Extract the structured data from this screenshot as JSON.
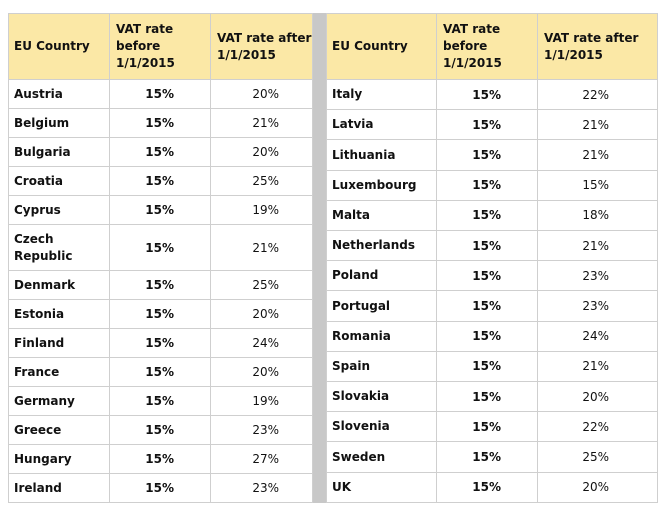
{
  "headers": {
    "country": "EU Country",
    "before": "VAT rate before 1/1/2015",
    "after": "VAT rate after 1/1/2015"
  },
  "left_rows": [
    {
      "country": "Austria",
      "before": "15%",
      "after": "20%"
    },
    {
      "country": "Belgium",
      "before": "15%",
      "after": "21%"
    },
    {
      "country": "Bulgaria",
      "before": "15%",
      "after": "20%"
    },
    {
      "country": "Croatia",
      "before": "15%",
      "after": "25%"
    },
    {
      "country": "Cyprus",
      "before": "15%",
      "after": "19%"
    },
    {
      "country": "Czech Republic",
      "before": "15%",
      "after": "21%"
    },
    {
      "country": "Denmark",
      "before": "15%",
      "after": "25%"
    },
    {
      "country": "Estonia",
      "before": "15%",
      "after": "20%"
    },
    {
      "country": "Finland",
      "before": "15%",
      "after": "24%"
    },
    {
      "country": "France",
      "before": "15%",
      "after": "20%"
    },
    {
      "country": "Germany",
      "before": "15%",
      "after": "19%"
    },
    {
      "country": "Greece",
      "before": "15%",
      "after": "23%"
    },
    {
      "country": "Hungary",
      "before": "15%",
      "after": "27%"
    },
    {
      "country": "Ireland",
      "before": "15%",
      "after": "23%"
    }
  ],
  "right_rows": [
    {
      "country": "Italy",
      "before": "15%",
      "after": "22%"
    },
    {
      "country": "Latvia",
      "before": "15%",
      "after": "21%"
    },
    {
      "country": "Lithuania",
      "before": "15%",
      "after": "21%"
    },
    {
      "country": "Luxembourg",
      "before": "15%",
      "after": "15%"
    },
    {
      "country": "Malta",
      "before": "15%",
      "after": "18%"
    },
    {
      "country": "Netherlands",
      "before": "15%",
      "after": "21%"
    },
    {
      "country": "Poland",
      "before": "15%",
      "after": "23%"
    },
    {
      "country": "Portugal",
      "before": "15%",
      "after": "23%"
    },
    {
      "country": "Romania",
      "before": "15%",
      "after": "24%"
    },
    {
      "country": "Spain",
      "before": "15%",
      "after": "21%"
    },
    {
      "country": "Slovakia",
      "before": "15%",
      "after": "20%"
    },
    {
      "country": "Slovenia",
      "before": "15%",
      "after": "22%"
    },
    {
      "country": "Sweden",
      "before": "15%",
      "after": "25%"
    },
    {
      "country": "UK",
      "before": "15%",
      "after": "20%"
    }
  ]
}
